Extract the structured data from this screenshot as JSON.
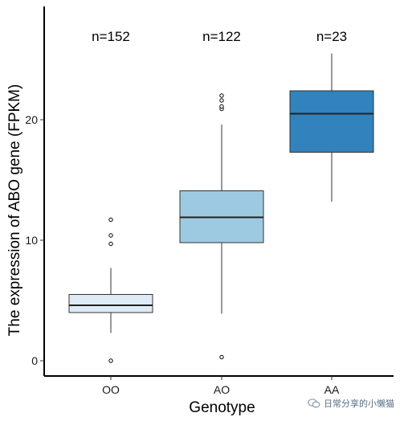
{
  "chart_data": {
    "type": "box",
    "title": "",
    "xlabel": "Genotype",
    "ylabel": "The expression of ABO gene (FPKM)",
    "ylim": [
      -1,
      29
    ],
    "yticks": [
      0,
      10,
      20
    ],
    "ytick_labels": [
      "0",
      "10",
      "20"
    ],
    "categories": [
      "OO",
      "AO",
      "AA"
    ],
    "n_labels": [
      "n=152",
      "n=122",
      "n=23"
    ],
    "boxes": [
      {
        "category": "OO",
        "color": "#DEEBF7",
        "q1": 4.0,
        "median": 4.6,
        "q3": 5.5,
        "whisker_low": 2.3,
        "whisker_high": 7.7,
        "outliers": [
          0.0,
          9.7,
          10.4,
          11.7
        ]
      },
      {
        "category": "AO",
        "color": "#9ECAE1",
        "q1": 9.8,
        "median": 11.9,
        "q3": 14.1,
        "whisker_low": 3.9,
        "whisker_high": 19.6,
        "outliers": [
          0.3,
          20.9,
          21.1,
          21.6,
          22.0
        ]
      },
      {
        "category": "AA",
        "color": "#3182BD",
        "q1": 17.3,
        "median": 20.5,
        "q3": 22.4,
        "whisker_low": 13.2,
        "whisker_high": 25.5,
        "outliers": []
      }
    ],
    "grid": false,
    "legend": "none"
  },
  "watermark": {
    "text": "日常分享的小懒猫",
    "icon": "wechat-icon"
  }
}
